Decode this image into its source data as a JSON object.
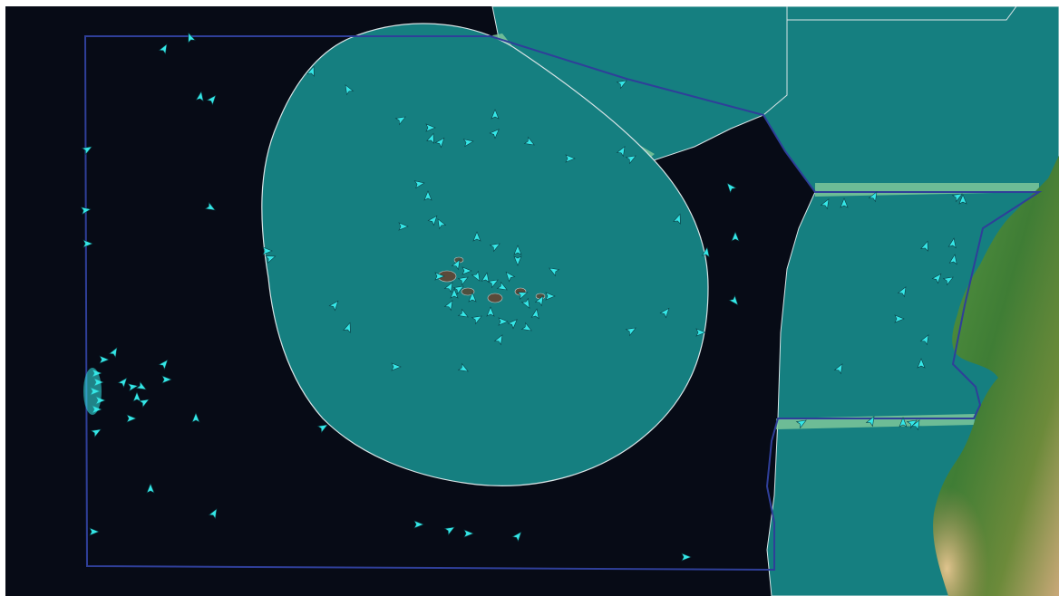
{
  "map": {
    "colors": {
      "ocean": "#070b16",
      "eez_fill": "#157f80",
      "eez_outline": "#d8e4e6",
      "monitoring_box": "#2f3f99",
      "corridor": "#7cc79a",
      "vessel": "#35e7e7",
      "land_green": "#4d8a3c",
      "land_tan": "#c9a878"
    },
    "icon": "vessel-marker-icon",
    "vessel_count": 140
  }
}
